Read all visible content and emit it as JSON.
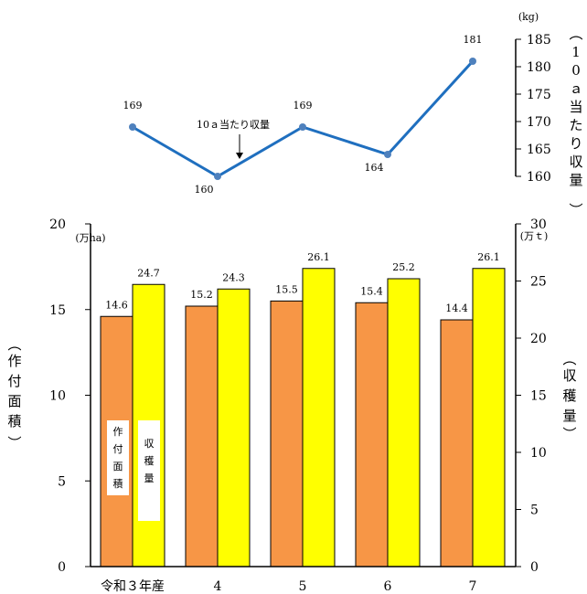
{
  "chart_data": [
    {
      "type": "line",
      "categories": [
        "令和３年産",
        "4",
        "5",
        "6",
        "7"
      ],
      "values": [
        169,
        160,
        169,
        164,
        181
      ],
      "data_labels": [
        "169",
        "160",
        "169",
        "164",
        "181"
      ],
      "ylim": [
        160,
        185
      ],
      "yticks": [
        "160",
        "165",
        "170",
        "175",
        "180",
        "185"
      ],
      "unit": "(kg)",
      "ylabel": "10ａ当たり収量",
      "annotation": "10ａ当たり収量",
      "color": "#1f6fbf",
      "yaxis_side": "right"
    },
    {
      "type": "bar",
      "categories": [
        "令和３年産",
        "4",
        "5",
        "6",
        "7"
      ],
      "series": [
        {
          "name": "作付面積",
          "values": [
            14.6,
            15.2,
            15.5,
            15.4,
            14.4
          ],
          "data_labels": [
            "14.6",
            "15.2",
            "15.5",
            "15.4",
            "14.4"
          ],
          "color": "#f79646",
          "axis": "left"
        },
        {
          "name": "収穫量",
          "values": [
            24.7,
            24.3,
            26.1,
            25.2,
            26.1
          ],
          "data_labels": [
            "24.7",
            "24.3",
            "26.1",
            "25.2",
            "26.1"
          ],
          "color": "#ffff00",
          "axis": "right"
        }
      ],
      "left_axis": {
        "unit": "(万ha)",
        "label": "作付面積",
        "ylim": [
          0,
          20
        ],
        "ticks": [
          "0",
          "5",
          "10",
          "15",
          "20"
        ]
      },
      "right_axis": {
        "unit": "(万ｔ)",
        "label": "収穫量",
        "ylim": [
          0,
          30
        ],
        "ticks": [
          "0",
          "5",
          "10",
          "15",
          "20",
          "25",
          "30"
        ]
      },
      "legend": "inside-first-bars"
    }
  ]
}
